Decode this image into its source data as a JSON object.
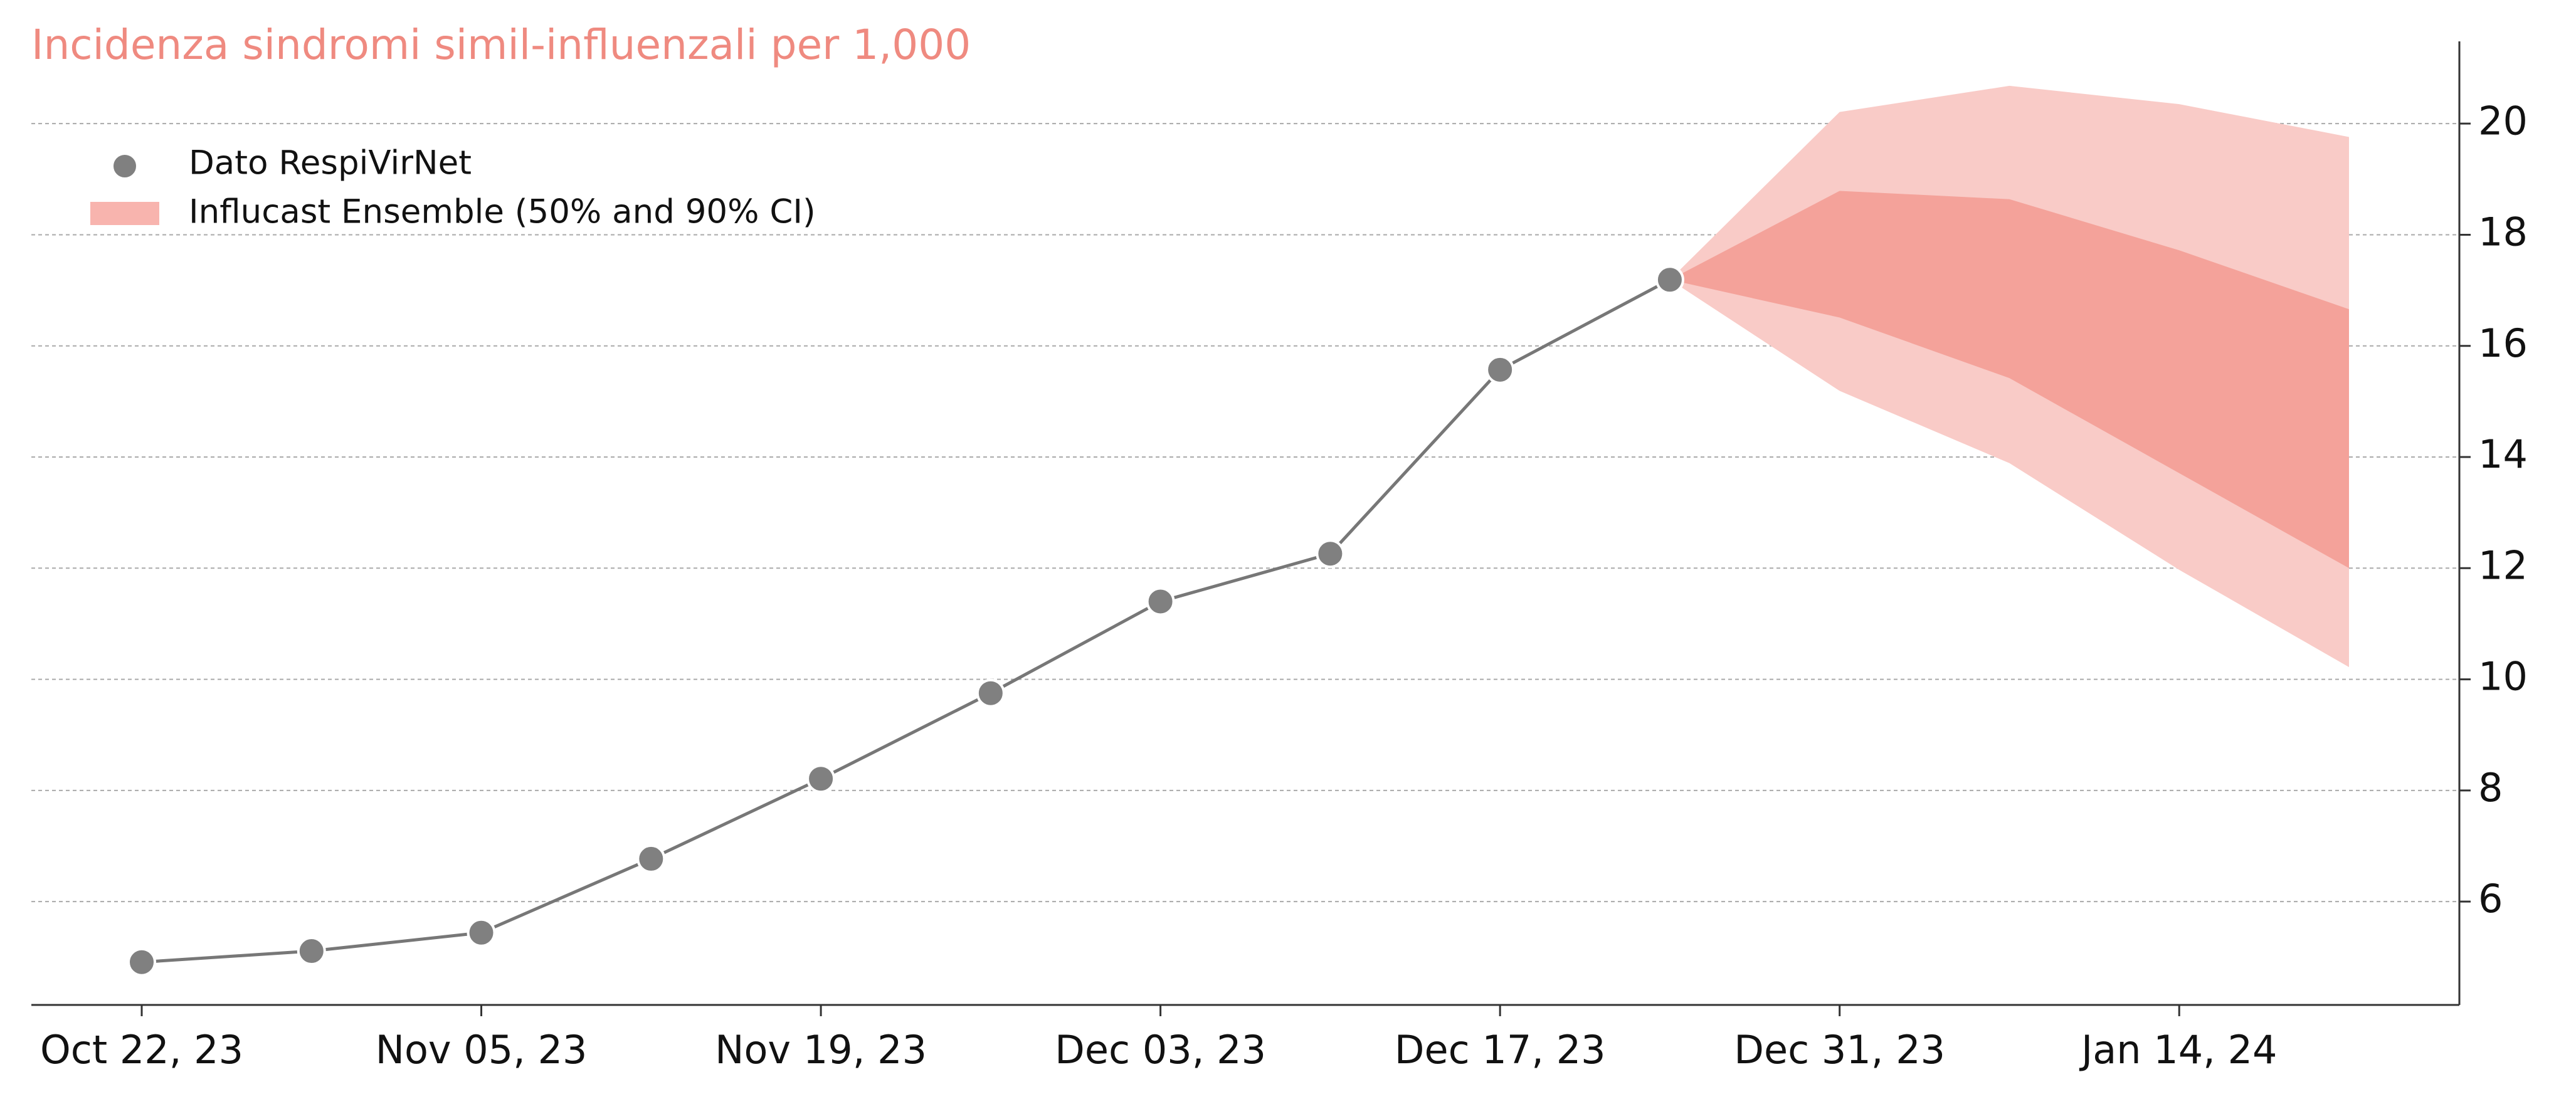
{
  "chart_data": {
    "type": "forecast",
    "title": "Incidenza sindromi simil-influenzali per 1,000",
    "categories": [
      "Oct 22, 23",
      null,
      "Nov 05, 23",
      null,
      "Nov 19, 23",
      null,
      "Dec 03, 23",
      null,
      "Dec 17, 23",
      null,
      "Dec 31, 23",
      null,
      "Jan 14, 24",
      null
    ],
    "series": [
      {
        "name": "Dato RespiVirNet",
        "color": "#808080",
        "values": [
          4.91,
          5.11,
          5.44,
          6.77,
          8.21,
          9.75,
          11.4,
          12.26,
          15.57,
          17.19,
          null,
          null,
          null,
          null
        ]
      }
    ],
    "band": {
      "name": "Influcast Ensemble (50% and 90% CI)",
      "color": "#f8b4ae",
      "ci90": {
        "color": "#f9cbc7",
        "lower": [
          null,
          null,
          null,
          null,
          null,
          null,
          null,
          null,
          null,
          17.19,
          15.19,
          13.89,
          11.97,
          10.22
        ],
        "upper": [
          null,
          null,
          null,
          null,
          null,
          null,
          null,
          null,
          null,
          17.19,
          20.21,
          20.68,
          20.35,
          19.76
        ]
      },
      "ci50": {
        "color": "#f4a29a",
        "lower": [
          null,
          null,
          null,
          null,
          null,
          null,
          null,
          null,
          null,
          17.19,
          16.51,
          15.42,
          13.71,
          12.0
        ],
        "upper": [
          null,
          null,
          null,
          null,
          null,
          null,
          null,
          null,
          null,
          17.19,
          18.79,
          18.64,
          17.72,
          16.66
        ]
      }
    },
    "ylim": [
      4.14,
      21.48
    ],
    "yticks": [
      6,
      8,
      10,
      12,
      14,
      16,
      18,
      20
    ],
    "grid": true
  }
}
